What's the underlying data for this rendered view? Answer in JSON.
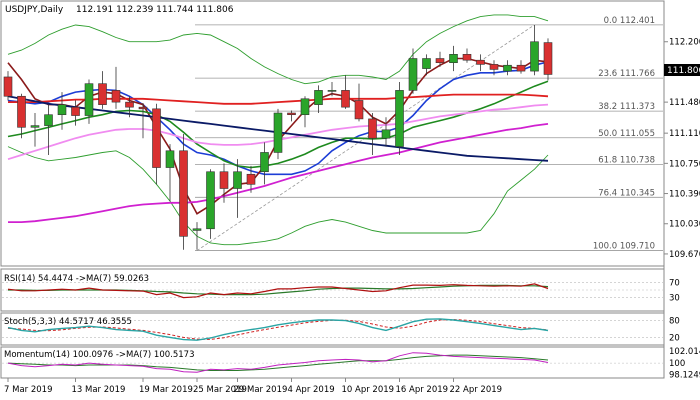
{
  "header": {
    "symbol": "USDJPY,Daily",
    "ohlc": "112.191 112.239 111.744 111.806"
  },
  "current_price": "111.806",
  "colors": {
    "bull": "#2aa52a",
    "bear": "#d93030",
    "ma_blue": "#1c3dd6",
    "ma_dark_red": "#8b1a1a",
    "ma_green": "#1e8a1e",
    "ma_red": "#e02020",
    "ma_pink": "#f08cf0",
    "ma_magenta": "#d020d0",
    "ma_navy": "#0a1a66",
    "bollinger": "#2e9e2e",
    "grid": "#e6e6e6",
    "fib": "#999999"
  },
  "chart_data": [
    {
      "type": "line",
      "panel": "price",
      "title": "USDJPY,Daily",
      "ylim": [
        109.55,
        112.65
      ],
      "y_ticks": [
        "112.200",
        "111.806",
        "111.480",
        "111.110",
        "110.750",
        "110.390",
        "110.030",
        "109.670"
      ],
      "x_ticks": [
        "7 Mar 2019",
        "13 Mar 2019",
        "19 Mar 2019",
        "25 Mar 2019",
        "29 Mar 2019",
        "4 Apr 2019",
        "10 Apr 2019",
        "16 Apr 2019",
        "22 Apr 2019"
      ],
      "fib_levels": [
        {
          "label": "0.0 112.401",
          "value": 112.401
        },
        {
          "label": "23.6 111.766",
          "value": 111.766
        },
        {
          "label": "38.2 111.373",
          "value": 111.373
        },
        {
          "label": "50.0 111.055",
          "value": 111.055
        },
        {
          "label": "61.8 110.738",
          "value": 110.738
        },
        {
          "label": "76.4 110.345",
          "value": 110.345
        },
        {
          "label": "100.0 109.710",
          "value": 109.71
        }
      ],
      "candles": [
        {
          "o": 111.78,
          "h": 111.85,
          "l": 111.5,
          "c": 111.55
        },
        {
          "o": 111.55,
          "h": 111.58,
          "l": 111.05,
          "c": 111.18
        },
        {
          "o": 111.18,
          "h": 111.35,
          "l": 110.95,
          "c": 111.2
        },
        {
          "o": 111.2,
          "h": 111.45,
          "l": 110.85,
          "c": 111.33
        },
        {
          "o": 111.33,
          "h": 111.6,
          "l": 111.15,
          "c": 111.45
        },
        {
          "o": 111.42,
          "h": 111.5,
          "l": 111.2,
          "c": 111.32
        },
        {
          "o": 111.32,
          "h": 111.75,
          "l": 111.22,
          "c": 111.7
        },
        {
          "o": 111.7,
          "h": 111.85,
          "l": 111.4,
          "c": 111.45
        },
        {
          "o": 111.62,
          "h": 111.9,
          "l": 111.4,
          "c": 111.48
        },
        {
          "o": 111.48,
          "h": 111.55,
          "l": 111.3,
          "c": 111.42
        },
        {
          "o": 111.42,
          "h": 111.47,
          "l": 111.05,
          "c": 111.4
        },
        {
          "o": 111.4,
          "h": 111.46,
          "l": 110.5,
          "c": 110.7
        },
        {
          "o": 110.7,
          "h": 110.98,
          "l": 110.3,
          "c": 110.9
        },
        {
          "o": 110.9,
          "h": 111.1,
          "l": 109.72,
          "c": 109.88
        },
        {
          "o": 109.95,
          "h": 110.05,
          "l": 109.72,
          "c": 109.97
        },
        {
          "o": 109.97,
          "h": 110.68,
          "l": 109.85,
          "c": 110.65
        },
        {
          "o": 110.65,
          "h": 110.75,
          "l": 110.28,
          "c": 110.45
        },
        {
          "o": 110.45,
          "h": 110.8,
          "l": 110.1,
          "c": 110.65
        },
        {
          "o": 110.62,
          "h": 110.72,
          "l": 110.4,
          "c": 110.5
        },
        {
          "o": 110.65,
          "h": 111.0,
          "l": 110.5,
          "c": 110.88
        },
        {
          "o": 110.88,
          "h": 111.4,
          "l": 110.8,
          "c": 111.35
        },
        {
          "o": 111.35,
          "h": 111.38,
          "l": 111.25,
          "c": 111.33
        },
        {
          "o": 111.33,
          "h": 111.55,
          "l": 111.18,
          "c": 111.52
        },
        {
          "o": 111.45,
          "h": 111.68,
          "l": 111.35,
          "c": 111.62
        },
        {
          "o": 111.62,
          "h": 111.72,
          "l": 111.55,
          "c": 111.62
        },
        {
          "o": 111.62,
          "h": 111.8,
          "l": 111.4,
          "c": 111.42
        },
        {
          "o": 111.5,
          "h": 111.7,
          "l": 111.25,
          "c": 111.28
        },
        {
          "o": 111.28,
          "h": 111.35,
          "l": 110.85,
          "c": 111.05
        },
        {
          "o": 111.05,
          "h": 111.3,
          "l": 110.95,
          "c": 111.15
        },
        {
          "o": 110.95,
          "h": 111.72,
          "l": 110.85,
          "c": 111.62
        },
        {
          "o": 111.62,
          "h": 112.12,
          "l": 111.58,
          "c": 112.0
        },
        {
          "o": 111.88,
          "h": 112.05,
          "l": 111.8,
          "c": 112.0
        },
        {
          "o": 112.0,
          "h": 112.08,
          "l": 111.9,
          "c": 111.95
        },
        {
          "o": 111.95,
          "h": 112.15,
          "l": 111.85,
          "c": 112.05
        },
        {
          "o": 112.05,
          "h": 112.12,
          "l": 111.95,
          "c": 111.98
        },
        {
          "o": 111.98,
          "h": 112.05,
          "l": 111.85,
          "c": 111.93
        },
        {
          "o": 111.93,
          "h": 111.98,
          "l": 111.8,
          "c": 111.87
        },
        {
          "o": 111.85,
          "h": 111.98,
          "l": 111.8,
          "c": 111.92
        },
        {
          "o": 111.92,
          "h": 111.98,
          "l": 111.82,
          "c": 111.85
        },
        {
          "o": 111.85,
          "h": 112.4,
          "l": 111.8,
          "c": 112.2
        },
        {
          "o": 112.19,
          "h": 112.24,
          "l": 111.74,
          "c": 111.81
        }
      ],
      "series": [
        {
          "key": "ma_blue",
          "values": [
            111.5,
            111.48,
            111.46,
            111.48,
            111.55,
            111.6,
            111.62,
            111.63,
            111.62,
            111.55,
            111.45,
            111.3,
            111.15,
            110.98,
            110.88,
            110.85,
            110.8,
            110.72,
            110.66,
            110.62,
            110.62,
            110.62,
            110.66,
            110.75,
            110.9,
            111.0,
            111.08,
            111.13,
            111.13,
            111.18,
            111.32,
            111.5,
            111.64,
            111.75,
            111.8,
            111.83,
            111.83,
            111.85,
            111.86,
            111.92,
            111.96
          ]
        },
        {
          "key": "ma_dark_red",
          "values": [
            111.95,
            111.75,
            111.52,
            111.45,
            111.45,
            111.42,
            111.55,
            111.6,
            111.58,
            111.5,
            111.45,
            111.18,
            110.92,
            110.45,
            110.15,
            110.25,
            110.38,
            110.5,
            110.52,
            110.72,
            111.02,
            111.2,
            111.38,
            111.52,
            111.58,
            111.55,
            111.46,
            111.3,
            111.22,
            111.38,
            111.62,
            111.82,
            111.92,
            112.0,
            112.0,
            111.96,
            111.92,
            111.9,
            111.88,
            111.98,
            111.96
          ]
        },
        {
          "key": "ma_green",
          "values": [
            111.07,
            111.1,
            111.14,
            111.18,
            111.22,
            111.26,
            111.3,
            111.33,
            111.37,
            111.38,
            111.37,
            111.33,
            111.25,
            111.12,
            110.98,
            110.88,
            110.78,
            110.72,
            110.7,
            110.72,
            110.75,
            110.8,
            110.86,
            110.94,
            111.0,
            111.05,
            111.05,
            111.04,
            111.05,
            111.1,
            111.18,
            111.22,
            111.26,
            111.3,
            111.35,
            111.4,
            111.46,
            111.53,
            111.6,
            111.67,
            111.73
          ]
        },
        {
          "key": "ma_red",
          "values": [
            111.48,
            111.48,
            111.48,
            111.49,
            111.5,
            111.51,
            111.51,
            111.52,
            111.52,
            111.52,
            111.52,
            111.51,
            111.5,
            111.49,
            111.48,
            111.47,
            111.46,
            111.46,
            111.46,
            111.47,
            111.48,
            111.49,
            111.5,
            111.51,
            111.52,
            111.52,
            111.52,
            111.52,
            111.52,
            111.53,
            111.54,
            111.55,
            111.56,
            111.57,
            111.57,
            111.57,
            111.57,
            111.57,
            111.57,
            111.56,
            111.55
          ]
        },
        {
          "key": "ma_pink",
          "values": [
            110.8,
            110.85,
            110.9,
            110.95,
            111.0,
            111.05,
            111.09,
            111.12,
            111.15,
            111.16,
            111.16,
            111.14,
            111.1,
            111.05,
            111.0,
            110.98,
            110.97,
            110.97,
            110.98,
            111.0,
            111.03,
            111.06,
            111.09,
            111.12,
            111.15,
            111.17,
            111.19,
            111.2,
            111.21,
            111.22,
            111.25,
            111.28,
            111.31,
            111.33,
            111.35,
            111.37,
            111.39,
            111.4,
            111.42,
            111.44,
            111.45
          ]
        },
        {
          "key": "ma_magenta",
          "values": [
            110.05,
            110.05,
            110.06,
            110.08,
            110.1,
            110.12,
            110.15,
            110.18,
            110.21,
            110.24,
            110.26,
            110.27,
            110.28,
            110.28,
            110.29,
            110.32,
            110.36,
            110.4,
            110.44,
            110.48,
            110.53,
            110.58,
            110.62,
            110.66,
            110.7,
            110.74,
            110.78,
            110.82,
            110.85,
            110.88,
            110.92,
            110.96,
            111.0,
            111.03,
            111.06,
            111.09,
            111.12,
            111.15,
            111.17,
            111.2,
            111.22
          ]
        },
        {
          "key": "ma_navy",
          "values": [
            111.55,
            111.52,
            111.49,
            111.46,
            111.44,
            111.42,
            111.4,
            111.38,
            111.36,
            111.34,
            111.32,
            111.3,
            111.28,
            111.26,
            111.24,
            111.22,
            111.2,
            111.18,
            111.16,
            111.14,
            111.12,
            111.1,
            111.08,
            111.06,
            111.04,
            111.02,
            111.0,
            110.98,
            110.96,
            110.94,
            110.92,
            110.9,
            110.88,
            110.86,
            110.84,
            110.83,
            110.82,
            110.81,
            110.8,
            110.79,
            110.78
          ]
        },
        {
          "key": "bb_upper",
          "values": [
            112.05,
            112.1,
            112.18,
            112.28,
            112.35,
            112.4,
            112.38,
            112.32,
            112.25,
            112.2,
            112.2,
            112.2,
            112.22,
            112.28,
            112.3,
            112.28,
            112.2,
            112.12,
            112.0,
            111.9,
            111.82,
            111.75,
            111.7,
            111.72,
            111.78,
            111.8,
            111.8,
            111.78,
            111.75,
            111.85,
            112.05,
            112.2,
            112.3,
            112.38,
            112.45,
            112.5,
            112.52,
            112.52,
            112.5,
            112.5,
            112.45
          ]
        },
        {
          "key": "bb_lower",
          "values": [
            110.95,
            110.88,
            110.82,
            110.78,
            110.8,
            110.82,
            110.85,
            110.88,
            110.9,
            110.82,
            110.68,
            110.5,
            110.3,
            110.05,
            109.88,
            109.8,
            109.78,
            109.78,
            109.8,
            109.82,
            109.85,
            109.92,
            110.0,
            110.05,
            110.08,
            110.05,
            110.0,
            109.95,
            109.92,
            109.92,
            109.92,
            109.92,
            109.92,
            109.92,
            109.92,
            109.95,
            110.15,
            110.42,
            110.55,
            110.68,
            110.85
          ]
        }
      ]
    },
    {
      "type": "line",
      "panel": "rsi",
      "title": "RSI(14) 54.4474 ->MA(7) 59.0263",
      "ylim": [
        0,
        100
      ],
      "y_ticks": [
        "70",
        "30"
      ],
      "series": [
        {
          "key": "rsi",
          "values": [
            52,
            48,
            48,
            50,
            52,
            50,
            55,
            50,
            49,
            48,
            47,
            38,
            42,
            30,
            32,
            42,
            38,
            42,
            40,
            46,
            53,
            53,
            56,
            58,
            58,
            54,
            50,
            46,
            48,
            56,
            63,
            63,
            62,
            64,
            62,
            61,
            60,
            61,
            60,
            66,
            54
          ]
        },
        {
          "key": "rsi_ma",
          "values": [
            50,
            50,
            49,
            49,
            50,
            50,
            50,
            50,
            50,
            49,
            48,
            46,
            45,
            42,
            40,
            39,
            38,
            38,
            38,
            39,
            42,
            45,
            48,
            52,
            54,
            55,
            55,
            54,
            53,
            53,
            54,
            56,
            58,
            60,
            61,
            62,
            62,
            62,
            61,
            61,
            59
          ]
        }
      ]
    },
    {
      "type": "line",
      "panel": "stochastic",
      "title": "Stoch(5,3,3) 44.5717 46.3555",
      "ylim": [
        0,
        100
      ],
      "y_ticks": [
        "80",
        "20"
      ],
      "series": [
        {
          "key": "k",
          "values": [
            55,
            45,
            40,
            48,
            52,
            55,
            60,
            55,
            48,
            45,
            42,
            28,
            20,
            12,
            10,
            18,
            30,
            40,
            48,
            55,
            65,
            72,
            78,
            82,
            82,
            80,
            70,
            55,
            45,
            60,
            76,
            85,
            86,
            82,
            76,
            70,
            62,
            55,
            48,
            52,
            44.57
          ]
        },
        {
          "key": "d",
          "values": [
            52,
            50,
            45,
            44,
            47,
            52,
            56,
            57,
            54,
            49,
            45,
            38,
            30,
            20,
            14,
            13,
            19,
            29,
            39,
            48,
            56,
            64,
            72,
            77,
            81,
            81,
            77,
            68,
            57,
            53,
            60,
            74,
            82,
            84,
            81,
            76,
            69,
            62,
            55,
            52,
            46.36
          ]
        }
      ]
    },
    {
      "type": "line",
      "panel": "momentum",
      "title": "Momentum(14) 100.0976 ->MA(7) 100.5173",
      "ylim": [
        97.9,
        102.3
      ],
      "y_ticks": [
        "102.0144",
        "100",
        "98.1249"
      ],
      "series": [
        {
          "key": "mom",
          "values": [
            100.0,
            99.6,
            99.4,
            99.6,
            99.8,
            99.7,
            100.0,
            99.8,
            99.7,
            99.6,
            99.5,
            99.1,
            99.0,
            98.6,
            98.5,
            99.0,
            98.9,
            99.1,
            99.0,
            99.3,
            99.7,
            99.9,
            100.1,
            100.4,
            100.5,
            100.6,
            100.5,
            100.2,
            100.4,
            101.2,
            101.7,
            101.6,
            101.3,
            101.1,
            101.0,
            100.9,
            100.8,
            100.7,
            100.6,
            100.5,
            100.1
          ]
        },
        {
          "key": "mom_ma",
          "values": [
            100.0,
            99.9,
            99.8,
            99.7,
            99.7,
            99.6,
            99.7,
            99.7,
            99.7,
            99.7,
            99.6,
            99.4,
            99.3,
            99.1,
            98.9,
            98.8,
            98.8,
            98.8,
            98.9,
            99.0,
            99.2,
            99.4,
            99.6,
            99.8,
            100.0,
            100.2,
            100.4,
            100.4,
            100.4,
            100.6,
            100.9,
            101.1,
            101.2,
            101.3,
            101.3,
            101.2,
            101.1,
            101.0,
            100.9,
            100.7,
            100.5
          ]
        }
      ]
    }
  ]
}
